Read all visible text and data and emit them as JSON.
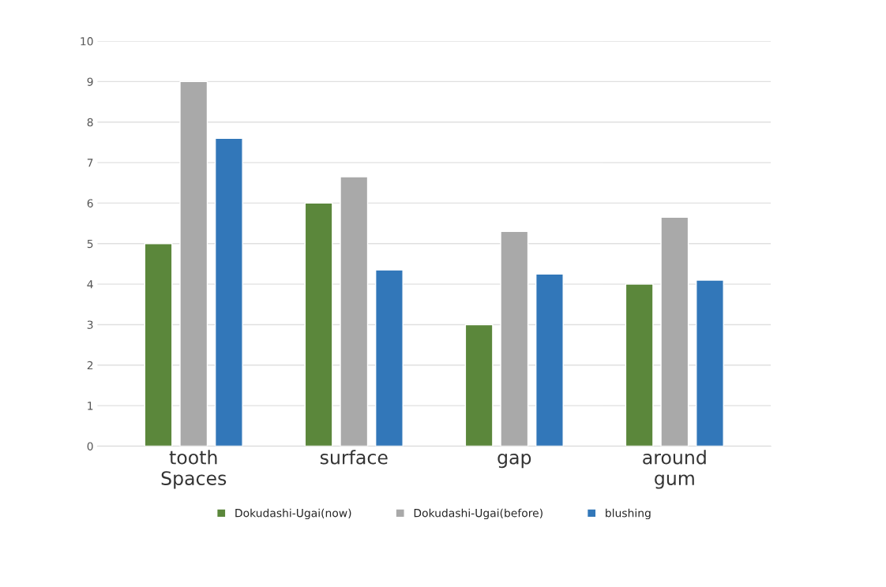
{
  "chart_data": {
    "type": "bar",
    "categories": [
      "tooth\nSpaces",
      "surface",
      "gap",
      "around\ngum"
    ],
    "series": [
      {
        "name": "Dokudashi-Ugai(now)",
        "color": "#5b873b",
        "values": [
          5,
          6,
          3,
          4
        ]
      },
      {
        "name": "Dokudashi-Ugai(before)",
        "color": "#a9a9a9",
        "values": [
          9,
          6.65,
          5.3,
          5.65
        ]
      },
      {
        "name": "blushing",
        "color": "#3277b9",
        "values": [
          7.6,
          4.35,
          4.25,
          4.1
        ]
      }
    ],
    "ylim": [
      0,
      10
    ],
    "yticks": [
      0,
      1,
      2,
      3,
      4,
      5,
      6,
      7,
      8,
      9,
      10
    ],
    "grid": "y",
    "legend": "bottom"
  }
}
